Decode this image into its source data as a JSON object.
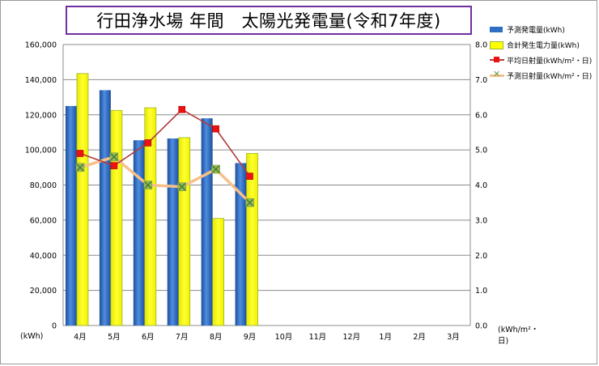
{
  "chart_data": {
    "type": "bar",
    "title": "行田浄水場 年間　太陽光発電量(令和7年度)",
    "categories": [
      "4月",
      "5月",
      "6月",
      "7月",
      "8月",
      "9月",
      "10月",
      "11月",
      "12月",
      "1月",
      "2月",
      "3月"
    ],
    "y_left": {
      "unit_label": "(kWh)",
      "ylim": [
        0,
        160000
      ],
      "ticks": [
        "0",
        "20,000",
        "40,000",
        "60,000",
        "80,000",
        "100,000",
        "120,000",
        "140,000",
        "160,000"
      ],
      "tick_values": [
        0,
        20000,
        40000,
        60000,
        80000,
        100000,
        120000,
        140000,
        160000
      ]
    },
    "y_right": {
      "unit_label": "(kWh/m²・日)",
      "ylim": [
        0,
        8
      ],
      "ticks": [
        "0.0",
        "1.0",
        "2.0",
        "3.0",
        "4.0",
        "5.0",
        "6.0",
        "7.0",
        "8.0"
      ],
      "tick_values": [
        0,
        1,
        2,
        3,
        4,
        5,
        6,
        7,
        8
      ]
    },
    "grid": true,
    "legend_position": "right",
    "series": [
      {
        "name": "予測発電量(kWh)",
        "type": "bar",
        "axis": "left",
        "color": "#2e6fc4",
        "values": [
          125000,
          134000,
          105500,
          106500,
          118000,
          92500,
          null,
          null,
          null,
          null,
          null,
          null
        ]
      },
      {
        "name": "合計発生電力量(kWh)",
        "type": "bar",
        "axis": "left",
        "color": "#ffff00",
        "values": [
          143500,
          122500,
          124000,
          107000,
          61000,
          98000,
          null,
          null,
          null,
          null,
          null,
          null
        ]
      },
      {
        "name": "平均日射量(kWh/m²・日)",
        "type": "line",
        "axis": "right",
        "color": "#b23a3a",
        "marker_color": "#ee1111",
        "values": [
          4.9,
          4.55,
          5.2,
          6.15,
          5.6,
          4.25,
          null,
          null,
          null,
          null,
          null,
          null
        ]
      },
      {
        "name": "予測日射量(kWh/m²・日)",
        "type": "line",
        "axis": "right",
        "color": "#f7c08a",
        "marker_color": "#5e9e44",
        "values": [
          4.5,
          4.8,
          4.0,
          3.95,
          4.45,
          3.5,
          null,
          null,
          null,
          null,
          null,
          null
        ]
      }
    ]
  }
}
